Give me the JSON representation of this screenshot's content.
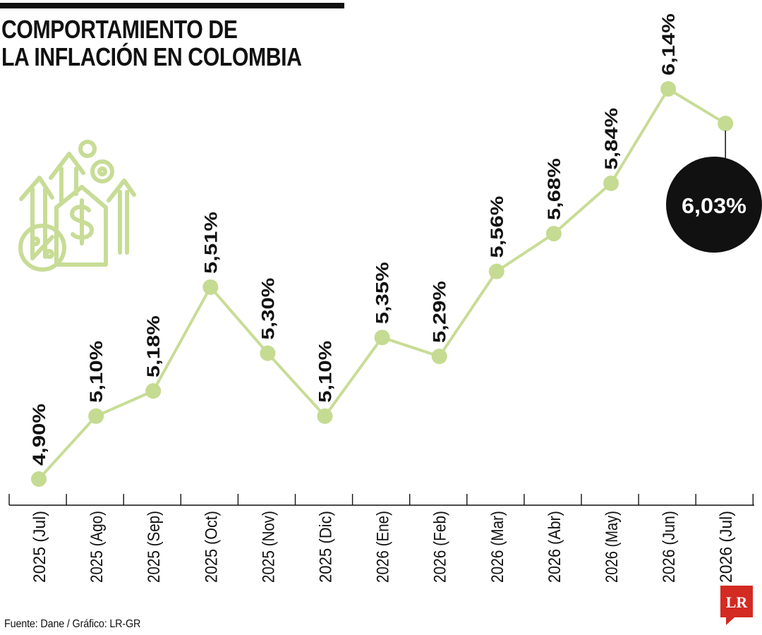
{
  "title": {
    "line1": "COMPORTAMIENTO DE",
    "line2": "LA INFLACIÓN EN COLOMBIA"
  },
  "source": "Fuente: Dane / Gráfico: LR-GR",
  "logo": {
    "text": "LR"
  },
  "colors": {
    "line": "#C8DC96",
    "marker": "#C5DB92",
    "highlight_bubble": "#111111",
    "text": "#111111"
  },
  "icon": "inflation-growth-icon",
  "chart_data": {
    "type": "line",
    "categories": [
      "2025 (Jul)",
      "2025 (Ago)",
      "2025 (Sep)",
      "2025 (Oct)",
      "2025 (Nov)",
      "2025 (Dic)",
      "2026 (Ene)",
      "2026 (Feb)",
      "2026 (Mar)",
      "2026 (Abr)",
      "2026 (May)",
      "2026 (Jun)",
      "2026 (Jul)"
    ],
    "values": [
      4.9,
      5.1,
      5.18,
      5.51,
      5.3,
      5.1,
      5.35,
      5.29,
      5.56,
      5.68,
      5.84,
      6.14,
      6.03
    ],
    "data_labels": [
      "4,90%",
      "5,10%",
      "5,18%",
      "5,51%",
      "5,30%",
      "5,10%",
      "5,35%",
      "5,29%",
      "5,56%",
      "5,68%",
      "5,84%",
      "6,14%",
      "6,03%"
    ],
    "highlight_index": 12,
    "ylim": [
      4.9,
      6.14
    ],
    "grid": false,
    "legend": "none"
  }
}
